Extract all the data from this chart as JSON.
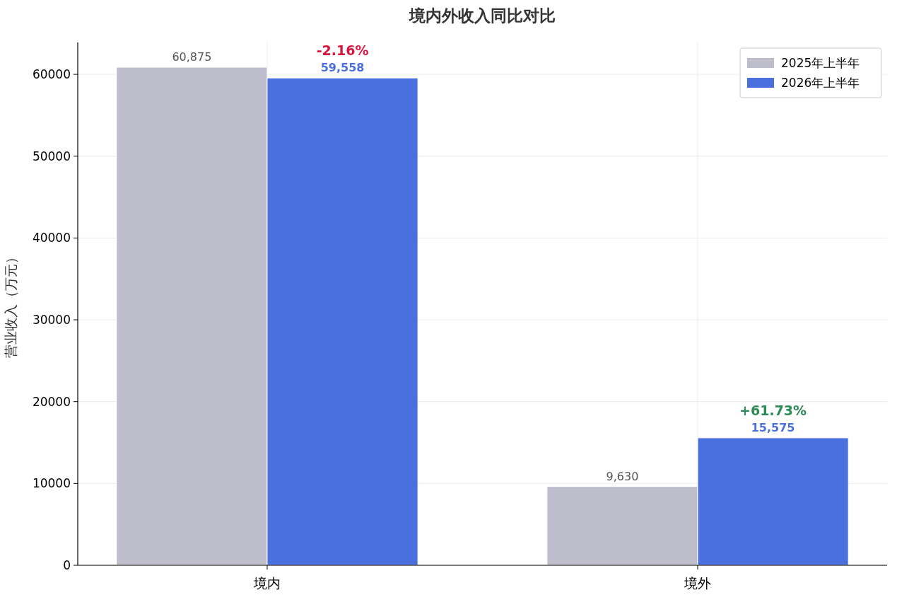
{
  "chart_data": {
    "type": "bar",
    "title": "境内外收入同比对比",
    "ylabel": "营业收入（万元）",
    "categories": [
      "境内",
      "境外"
    ],
    "series": [
      {
        "name": "2025年上半年",
        "color": "#bdbdcc",
        "values": [
          60875,
          9630
        ],
        "value_labels": [
          "60,875",
          "9,630"
        ]
      },
      {
        "name": "2026年上半年",
        "color": "#4a70e0",
        "values": [
          59558,
          15575
        ],
        "value_labels": [
          "59,558",
          "15,575"
        ]
      }
    ],
    "annotations": [
      "-2.16%",
      "+61.73%"
    ],
    "ylim": [
      0,
      63900
    ],
    "yticks": [
      0,
      10000,
      20000,
      30000,
      40000,
      50000,
      60000
    ],
    "grid": true,
    "legend": "top right"
  }
}
